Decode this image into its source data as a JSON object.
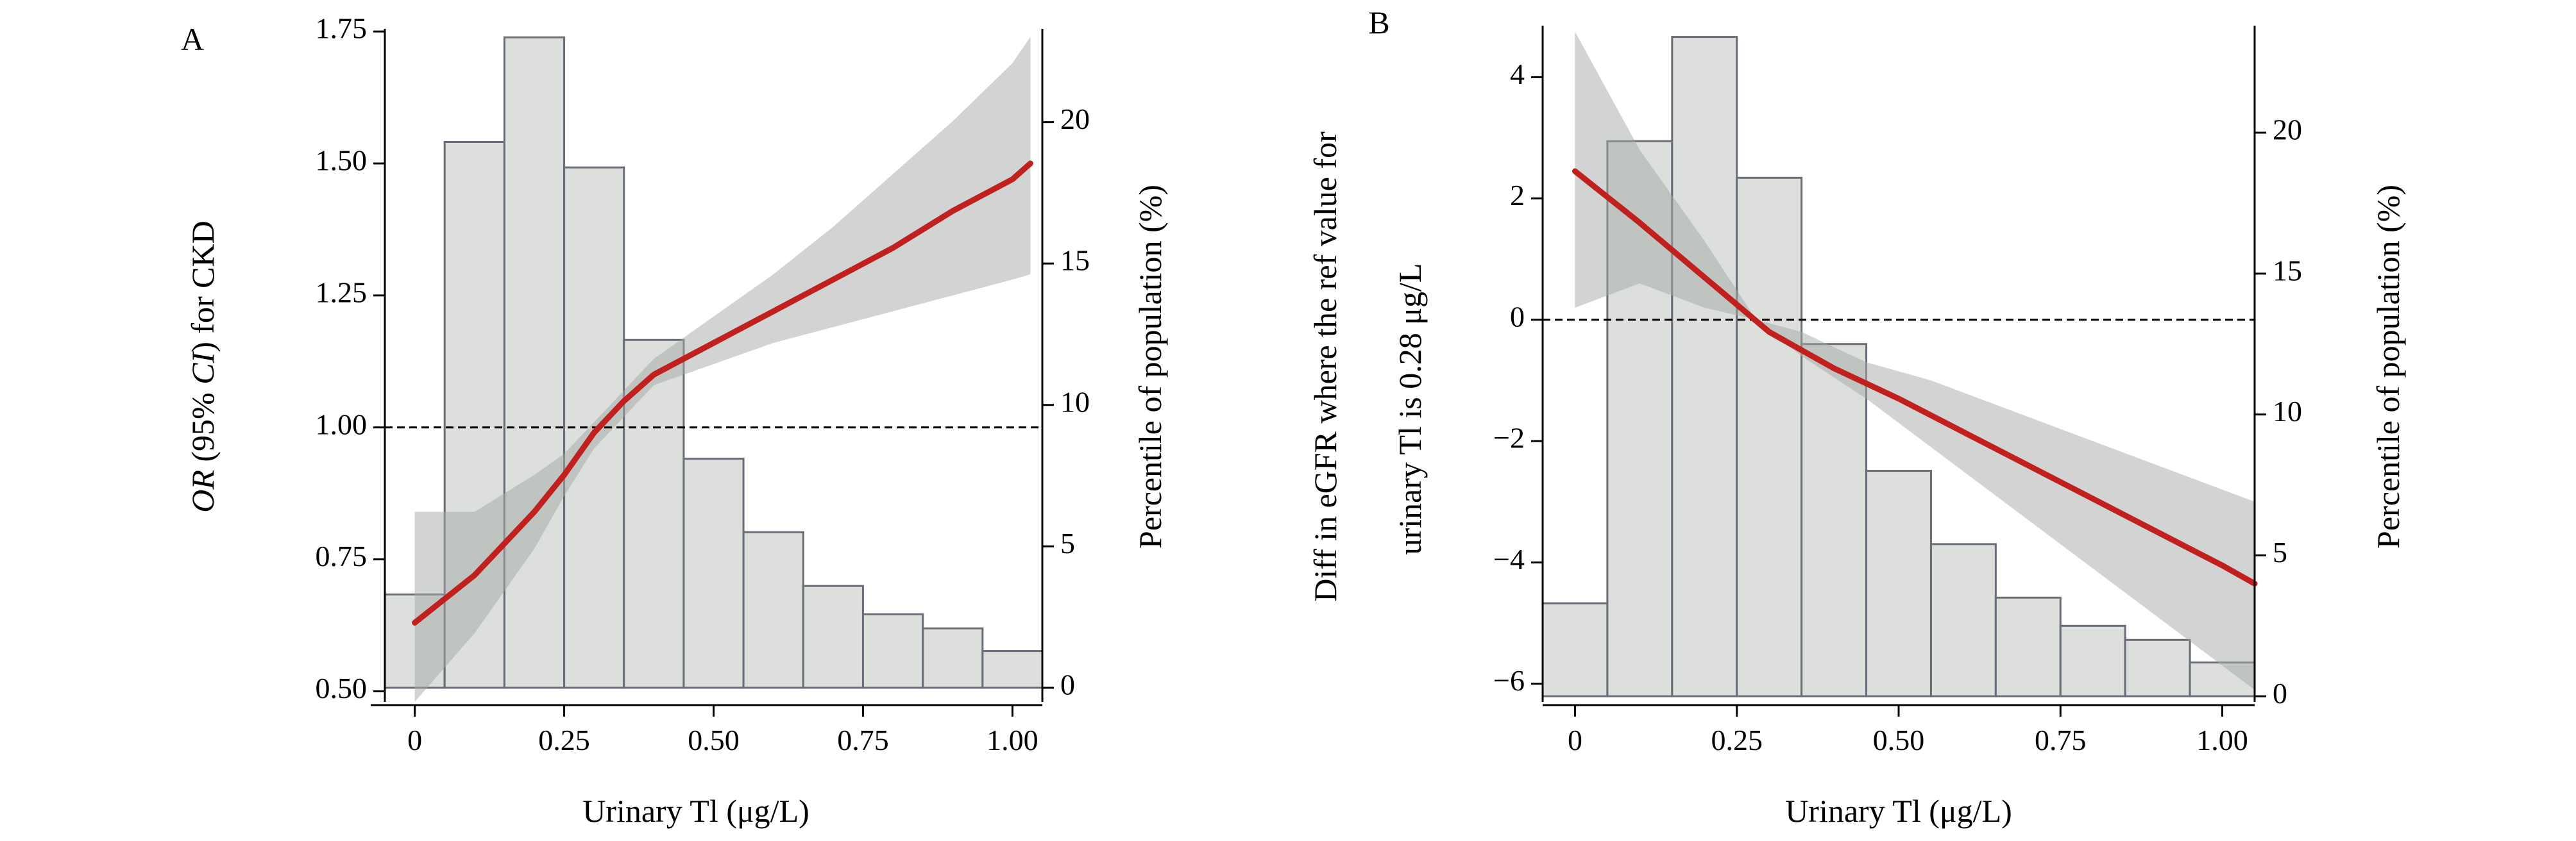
{
  "chart_data": [
    {
      "panel": "A",
      "type": "line",
      "xlabel": "Urinary Tl (μg/L)",
      "ylabel_prefix": "OR",
      "ylabel_mid": " (95% ",
      "ylabel_ci": "CI",
      "ylabel_suffix": ") for CKD",
      "y2label": "Percentile of population (%)",
      "xlim": [
        -0.05,
        1.05
      ],
      "ylim": [
        0.48,
        1.755
      ],
      "y2lim": [
        -0.5,
        23.3
      ],
      "xticks": [
        0,
        0.25,
        0.5,
        0.75,
        1.0
      ],
      "xticklabels": [
        "0",
        "0.25",
        "0.50",
        "0.75",
        "1.00"
      ],
      "yticks": [
        0.5,
        0.75,
        1.0,
        1.25,
        1.5,
        1.75
      ],
      "yticklabels": [
        "0.50",
        "0.75",
        "1.00",
        "1.25",
        "1.50",
        "1.75"
      ],
      "y2ticks": [
        0,
        5,
        10,
        15,
        20
      ],
      "y2ticklabels": [
        "0",
        "5",
        "10",
        "15",
        "20"
      ],
      "reference_line": 1.0,
      "histogram": {
        "bin_edges": [
          -0.05,
          0.05,
          0.15,
          0.25,
          0.35,
          0.45,
          0.55,
          0.65,
          0.75,
          0.85,
          0.95,
          1.05
        ],
        "percent": [
          3.3,
          19.3,
          23.0,
          18.4,
          12.3,
          8.1,
          5.5,
          3.6,
          2.6,
          2.1,
          1.3
        ]
      },
      "curve": {
        "x": [
          0,
          0.1,
          0.2,
          0.25,
          0.3,
          0.35,
          0.4,
          0.5,
          0.6,
          0.7,
          0.8,
          0.9,
          1.0,
          1.03
        ],
        "y": [
          0.63,
          0.72,
          0.84,
          0.91,
          0.99,
          1.05,
          1.1,
          1.16,
          1.22,
          1.28,
          1.34,
          1.41,
          1.47,
          1.5
        ]
      },
      "ci": {
        "x": [
          0,
          0.1,
          0.2,
          0.25,
          0.3,
          0.4,
          0.5,
          0.6,
          0.7,
          0.8,
          0.9,
          1.0,
          1.03
        ],
        "lower": [
          0.48,
          0.61,
          0.77,
          0.87,
          0.96,
          1.08,
          1.12,
          1.16,
          1.19,
          1.22,
          1.25,
          1.28,
          1.29
        ],
        "upper": [
          0.84,
          0.84,
          0.91,
          0.95,
          1.01,
          1.13,
          1.21,
          1.29,
          1.38,
          1.48,
          1.58,
          1.69,
          1.74
        ]
      }
    },
    {
      "panel": "B",
      "type": "line",
      "xlabel": "Urinary Tl (μg/L)",
      "ylabel_line1": "Diff in eGFR where the ref value for",
      "ylabel_line2": "urinary Tl is 0.28 μg/L",
      "y2label": "Percentile of population (%)",
      "xlim": [
        -0.05,
        1.05
      ],
      "ylim": [
        -6.3,
        4.85
      ],
      "y2lim": [
        -0.2,
        23.8
      ],
      "xticks": [
        0,
        0.25,
        0.5,
        0.75,
        1.0
      ],
      "xticklabels": [
        "0",
        "0.25",
        "0.50",
        "0.75",
        "1.00"
      ],
      "yticks": [
        -6,
        -4,
        -2,
        0,
        2,
        4
      ],
      "yticklabels": [
        "−6",
        "−4",
        "−2",
        "0",
        "2",
        "4"
      ],
      "y2ticks": [
        0,
        5,
        10,
        15,
        20
      ],
      "y2ticklabels": [
        "0",
        "5",
        "10",
        "15",
        "20"
      ],
      "reference_line": 0,
      "histogram": {
        "bin_edges": [
          -0.05,
          0.05,
          0.15,
          0.25,
          0.35,
          0.45,
          0.55,
          0.65,
          0.75,
          0.85,
          0.95,
          1.05
        ],
        "percent": [
          3.3,
          19.7,
          23.4,
          18.4,
          12.5,
          8.0,
          5.4,
          3.5,
          2.5,
          2.0,
          1.2
        ]
      },
      "curve": {
        "x": [
          0,
          0.1,
          0.2,
          0.25,
          0.3,
          0.4,
          0.5,
          0.6,
          0.7,
          0.8,
          0.9,
          1.0,
          1.05
        ],
        "y": [
          2.45,
          1.6,
          0.7,
          0.25,
          -0.2,
          -0.8,
          -1.3,
          -1.85,
          -2.4,
          -2.95,
          -3.5,
          -4.05,
          -4.35
        ]
      },
      "ci": {
        "x": [
          0,
          0.1,
          0.2,
          0.28,
          0.35,
          0.45,
          0.55,
          0.65,
          0.75,
          0.85,
          0.95,
          1.05
        ],
        "lower": [
          0.2,
          0.6,
          0.2,
          0.0,
          -0.6,
          -1.3,
          -2.1,
          -2.9,
          -3.7,
          -4.5,
          -5.3,
          -6.1
        ],
        "upper": [
          4.75,
          2.8,
          1.3,
          0.0,
          -0.2,
          -0.7,
          -1.0,
          -1.4,
          -1.8,
          -2.2,
          -2.6,
          -3.0
        ]
      }
    }
  ]
}
